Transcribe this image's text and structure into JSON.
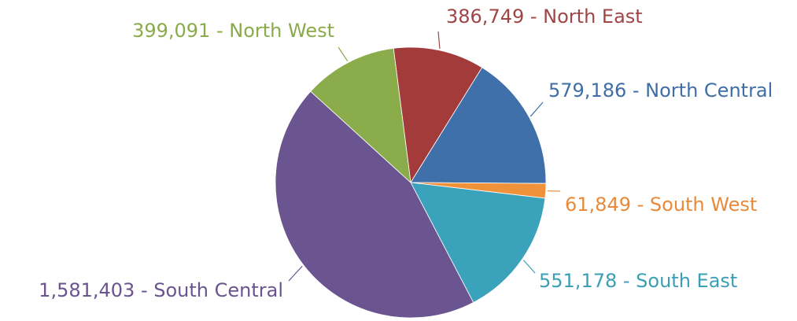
{
  "chart_data": {
    "type": "pie",
    "values": [
      386749,
      579186,
      61849,
      551178,
      1581403,
      399091
    ],
    "value_labels": [
      "386,749 - North East",
      "579,186 - North Central",
      "61,849 - South West",
      "551,178 - South East",
      "1,581,403 - South Central",
      "399,091 - North West"
    ],
    "colors": [
      "#a33b3b",
      "#4070aa",
      "#f0923a",
      "#3aa2ba",
      "#6b5591",
      "#8bac4b"
    ],
    "label_colors": [
      "#a04545",
      "#3f6ea6",
      "#e98a3a",
      "#3a9fb5",
      "#6a5490",
      "#8aab4a"
    ]
  }
}
